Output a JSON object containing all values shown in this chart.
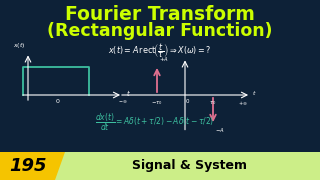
{
  "bg_color": "#0d2137",
  "title_line1": "Fourier Transform",
  "title_line2": "(Rectangular Function)",
  "title_color": "#ccff00",
  "formula_color": "#ffffff",
  "graph_color": "#3dbfa0",
  "impulse_color": "#e07090",
  "bottom_num": "195",
  "bottom_text": "Signal & System",
  "num_bg": "#f5c400",
  "bar_bg": "#ccee88",
  "white": "#ffffff",
  "formula_green": "#3dbfa0"
}
